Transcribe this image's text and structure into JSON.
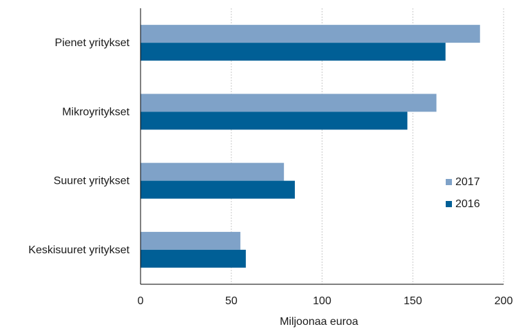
{
  "chart_data": {
    "type": "bar",
    "orientation": "horizontal",
    "categories": [
      "Pienet yritykset",
      "Mikroyritykset",
      "Suuret yritykset",
      "Keskisuuret yritykset"
    ],
    "series": [
      {
        "name": "2017",
        "color": "#7fa2c8",
        "values": [
          187,
          163,
          79,
          55
        ]
      },
      {
        "name": "2016",
        "color": "#005f96",
        "values": [
          168,
          147,
          85,
          58
        ]
      }
    ],
    "xlabel": "Miljoonaa euroa",
    "xlim": [
      0,
      200
    ],
    "xticks": [
      0,
      50,
      100,
      150,
      200
    ],
    "grid": "vertical-dashed",
    "legend": "right"
  }
}
